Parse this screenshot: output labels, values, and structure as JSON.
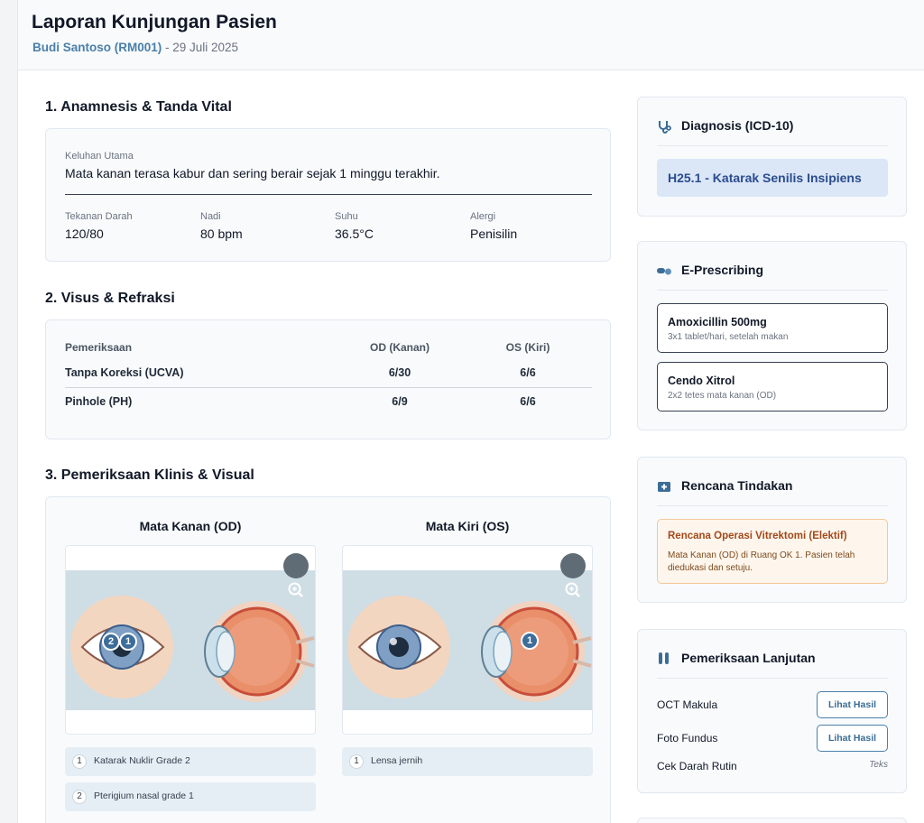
{
  "header": {
    "title": "Laporan Kunjungan Pasien",
    "patient": "Budi Santoso (RM001)",
    "date": " - 29 Juli 2025"
  },
  "anamnesis": {
    "title": "1. Anamnesis & Tanda Vital",
    "complaint_label": "Keluhan Utama",
    "complaint": "Mata kanan terasa kabur dan sering berair sejak 1 minggu terakhir.",
    "vitals": [
      {
        "label": "Tekanan Darah",
        "value": "120/80"
      },
      {
        "label": "Nadi",
        "value": "80 bpm"
      },
      {
        "label": "Suhu",
        "value": "36.5°C"
      },
      {
        "label": "Alergi",
        "value": "Penisilin"
      }
    ]
  },
  "visus": {
    "title": "2. Visus & Refraksi",
    "headers": [
      "Pemeriksaan",
      "OD (Kanan)",
      "OS (Kiri)"
    ],
    "rows": [
      [
        "Tanpa Koreksi (UCVA)",
        "6/30",
        "6/6"
      ],
      [
        "Pinhole (PH)",
        "6/9",
        "6/6"
      ]
    ]
  },
  "clinical": {
    "title": "3. Pemeriksaan Klinis & Visual",
    "right_eye": {
      "title": "Mata Kanan (OD)",
      "markers": [
        "2",
        "1"
      ],
      "notes": [
        {
          "num": "1",
          "text": "Katarak Nuklir Grade 2"
        },
        {
          "num": "2",
          "text": "Pterigium nasal grade 1"
        }
      ]
    },
    "left_eye": {
      "title": "Mata Kiri (OS)",
      "markers": [
        "1"
      ],
      "notes": [
        {
          "num": "1",
          "text": "Lensa jernih"
        }
      ]
    }
  },
  "diagnosis": {
    "title": "Diagnosis (ICD-10)",
    "value": "H25.1 - Katarak Senilis Insipiens"
  },
  "prescribing": {
    "title": "E-Prescribing",
    "items": [
      {
        "name": "Amoxicillin 500mg",
        "dose": "3x1 tablet/hari, setelah makan"
      },
      {
        "name": "Cendo Xitrol",
        "dose": "2x2 tetes mata kanan (OD)"
      }
    ]
  },
  "plan": {
    "title": "Rencana Tindakan",
    "item_title": "Rencana Operasi Vitrektomi (Elektif)",
    "item_desc": "Mata Kanan (OD) di Ruang OK 1. Pasien telah diedukasi dan setuju."
  },
  "labs": {
    "title": "Pemeriksaan Lanjutan",
    "items": [
      {
        "name": "OCT Makula",
        "action": "Lihat Hasil"
      },
      {
        "name": "Foto Fundus",
        "action": "Lihat Hasil"
      },
      {
        "name": "Cek Darah Rutin",
        "note": "Teks"
      }
    ]
  },
  "colors": {
    "accent": "#4a7fa8",
    "diagnosis_bg": "#dbe7f7",
    "plan_bg": "#fef6ec",
    "plan_text": "#a1491b"
  }
}
